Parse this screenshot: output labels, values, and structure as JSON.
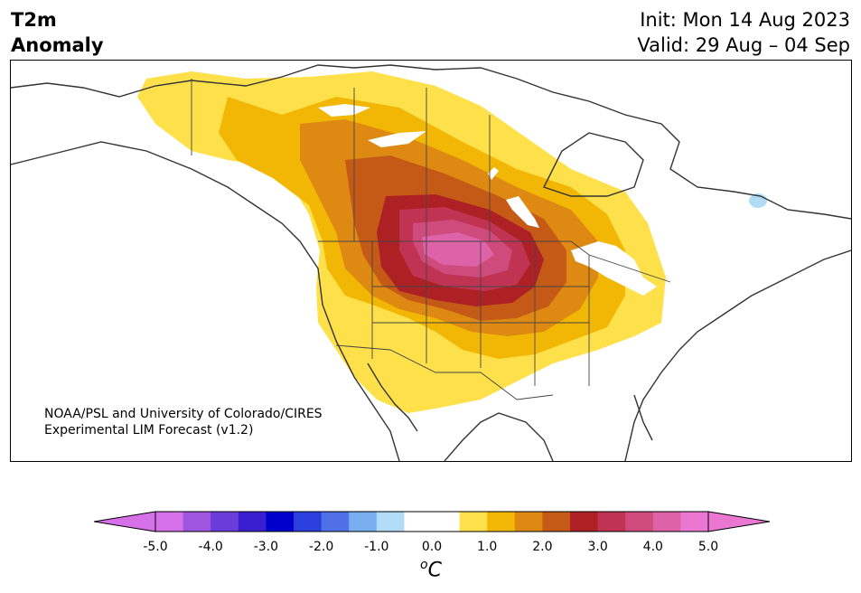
{
  "title": {
    "line1": "T2m",
    "line2": "Anomaly",
    "init": "Init: Mon 14 Aug 2023",
    "valid": "Valid: 29 Aug – 04 Sep"
  },
  "credit": {
    "line1": "NOAA/PSL and University of Colorado/CIRES",
    "line2": "Experimental LIM Forecast (v1.2)"
  },
  "colorbar": {
    "unit_sup": "o",
    "unit": "C",
    "tick_labels": [
      "-5.0",
      "-4.0",
      "-3.0",
      "-2.0",
      "-1.0",
      "0.0",
      "1.0",
      "2.0",
      "3.0",
      "4.0",
      "5.0"
    ],
    "colors": [
      "#d670e8",
      "#9f55e0",
      "#6b3cd9",
      "#3a1fd0",
      "#0000cc",
      "#2a3fdc",
      "#4f70e6",
      "#78aef0",
      "#b0dcf8",
      "#ffffff",
      "#ffffff",
      "#fde04a",
      "#f2b705",
      "#de8a12",
      "#c55a17",
      "#ad2024",
      "#c03352",
      "#cf4b7c",
      "#dd62a8",
      "#ea78d3"
    ],
    "under_color": "#d670e8",
    "over_color": "#ea78d3"
  },
  "map": {
    "region": "North America",
    "warm_anomaly_center": "Northern Plains / Montana",
    "cool_anomaly_spot": "Quebec"
  }
}
